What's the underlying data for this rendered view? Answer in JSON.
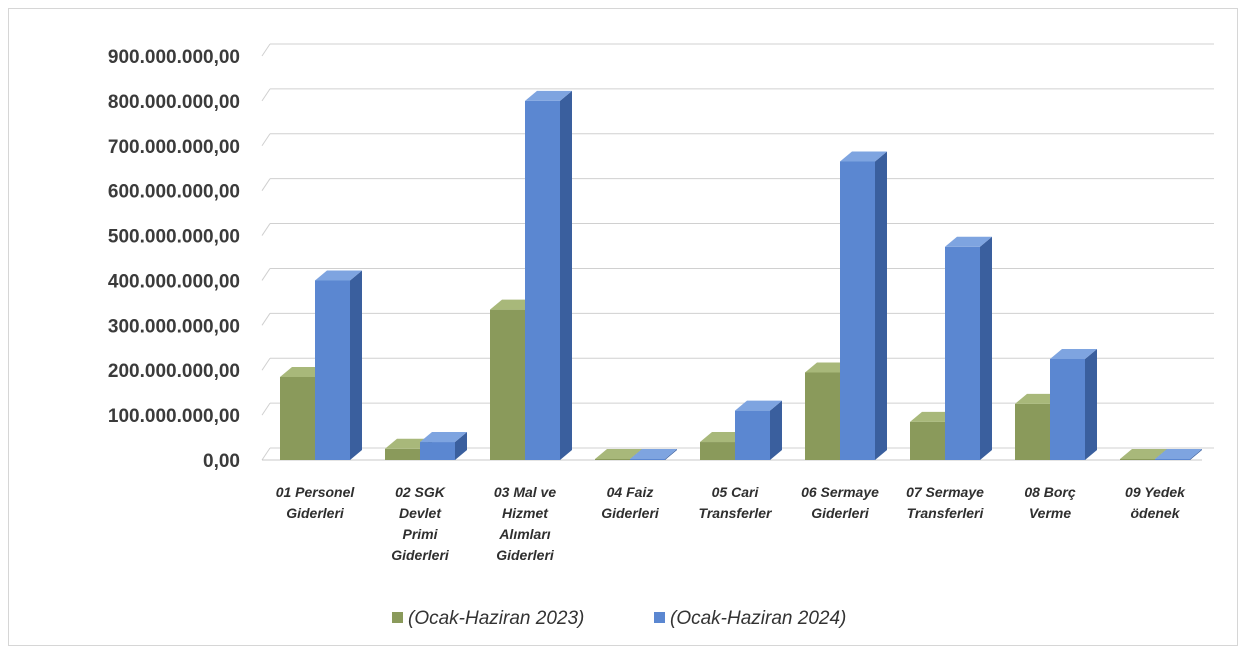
{
  "chart_data": {
    "type": "bar",
    "title": "",
    "xlabel": "",
    "ylabel": "",
    "ylim": [
      0,
      900000000
    ],
    "ytick_step": 100000000,
    "yticks": [
      "0,00",
      "100.000.000,00",
      "200.000.000,00",
      "300.000.000,00",
      "400.000.000,00",
      "500.000.000,00",
      "600.000.000,00",
      "700.000.000,00",
      "800.000.000,00",
      "900.000.000,00"
    ],
    "categories": [
      [
        "01 Personel",
        "Giderleri"
      ],
      [
        "02 SGK",
        "Devlet",
        "Primi",
        "Giderleri"
      ],
      [
        "03 Mal ve",
        "Hizmet",
        "Alımları",
        "Giderleri"
      ],
      [
        "04 Faiz",
        "Giderleri"
      ],
      [
        "05 Cari",
        "Transferler"
      ],
      [
        "06 Sermaye",
        "Giderleri"
      ],
      [
        "07 Sermaye",
        "Transferleri"
      ],
      [
        "08 Borç",
        "Verme"
      ],
      [
        "09 Yedek",
        "ödenek"
      ]
    ],
    "series": [
      {
        "name": "(Ocak-Haziran 2023)",
        "color": "#8a9a5b",
        "side_color": "#5e6b3a",
        "top_color": "#a8b87a",
        "values": [
          185000000,
          25000000,
          335000000,
          1000000,
          40000000,
          195000000,
          85000000,
          125000000,
          1000000
        ]
      },
      {
        "name": "(Ocak-Haziran 2024)",
        "color": "#5b87d1",
        "side_color": "#3a5f9e",
        "top_color": "#7ea4e0",
        "values": [
          400000000,
          40000000,
          800000000,
          1000000,
          110000000,
          665000000,
          475000000,
          225000000,
          1000000
        ]
      }
    ],
    "grid": true,
    "legend_position": "bottom-center"
  }
}
